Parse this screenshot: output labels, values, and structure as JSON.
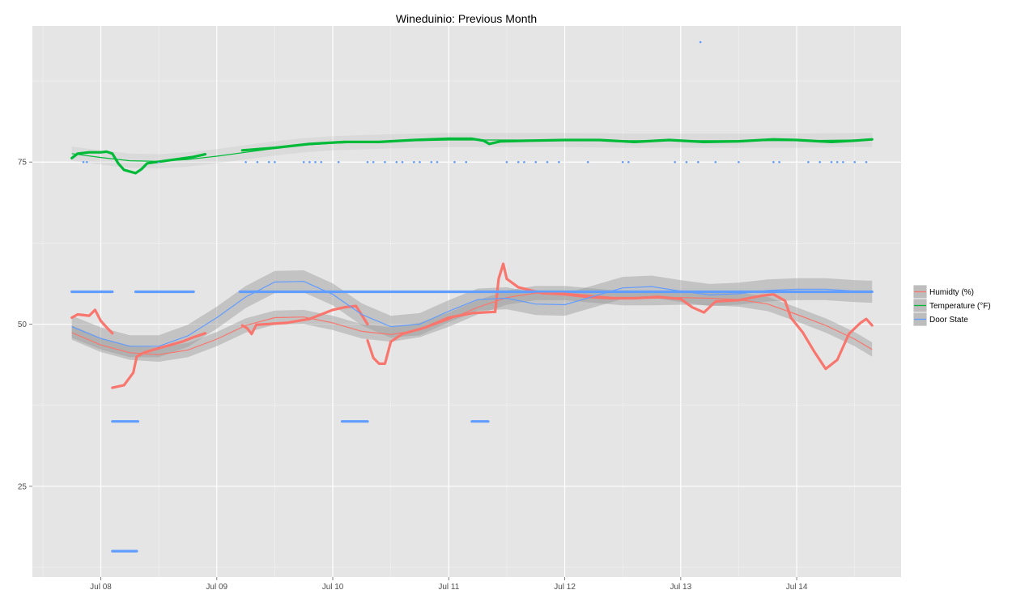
{
  "chart_data": {
    "type": "line",
    "title": "Wineduinio: Previous Month",
    "xlabel": "",
    "ylabel": "",
    "x_ticks": [
      "Jul 08",
      "Jul 09",
      "Jul 10",
      "Jul 11",
      "Jul 12",
      "Jul 13",
      "Jul 14"
    ],
    "x_range": [
      -0.59,
      6.9
    ],
    "y_ticks": [
      25,
      50,
      75
    ],
    "y_range": [
      11,
      96
    ],
    "grid": true,
    "legend_position": "right",
    "series": [
      {
        "name": "Humidty (%)",
        "color": "#f8766d",
        "kind": "points",
        "segments": [
          [
            [
              -0.25,
              51
            ],
            [
              -0.2,
              51.5
            ],
            [
              -0.1,
              51.3
            ],
            [
              -0.05,
              52.2
            ],
            [
              0.0,
              50.5
            ],
            [
              0.05,
              49.5
            ],
            [
              0.1,
              48.6
            ]
          ],
          [
            [
              0.1,
              40.2
            ],
            [
              0.2,
              40.6
            ],
            [
              0.28,
              42.5
            ],
            [
              0.31,
              45
            ],
            [
              0.37,
              45.6
            ],
            [
              0.5,
              46.3
            ],
            [
              0.7,
              47.3
            ],
            [
              0.8,
              48
            ],
            [
              0.9,
              48.6
            ]
          ],
          [
            [
              1.22,
              49.8
            ],
            [
              1.26,
              49.4
            ],
            [
              1.3,
              48.5
            ],
            [
              1.34,
              49.9
            ],
            [
              1.6,
              50.2
            ],
            [
              1.8,
              50.8
            ],
            [
              2.0,
              52.2
            ],
            [
              2.1,
              52.6
            ],
            [
              2.2,
              52.8
            ],
            [
              2.3,
              50
            ]
          ],
          [
            [
              2.3,
              47.5
            ],
            [
              2.35,
              44.8
            ],
            [
              2.4,
              43.9
            ],
            [
              2.45,
              43.9
            ],
            [
              2.5,
              47.3
            ],
            [
              2.6,
              48.5
            ],
            [
              2.8,
              49.5
            ],
            [
              3.0,
              51
            ],
            [
              3.2,
              51.7
            ],
            [
              3.4,
              51.9
            ]
          ],
          [
            [
              3.4,
              51.9
            ],
            [
              3.43,
              57
            ],
            [
              3.47,
              59.3
            ],
            [
              3.5,
              57
            ],
            [
              3.6,
              55.7
            ],
            [
              3.8,
              54.8
            ],
            [
              4.0,
              54.6
            ],
            [
              4.2,
              54.2
            ],
            [
              4.4,
              54
            ],
            [
              4.6,
              54
            ],
            [
              4.8,
              54.2
            ]
          ],
          [
            [
              4.8,
              54.2
            ],
            [
              5.0,
              53.9
            ],
            [
              5.1,
              52.6
            ],
            [
              5.2,
              51.8
            ],
            [
              5.3,
              53.5
            ],
            [
              5.5,
              53.7
            ],
            [
              5.7,
              54.4
            ],
            [
              5.8,
              54.6
            ],
            [
              5.9,
              53.6
            ],
            [
              5.95,
              51
            ],
            [
              6.05,
              48.8
            ],
            [
              6.15,
              45.8
            ],
            [
              6.25,
              43.1
            ],
            [
              6.35,
              44.5
            ],
            [
              6.45,
              48.5
            ],
            [
              6.55,
              50.2
            ],
            [
              6.6,
              50.8
            ],
            [
              6.65,
              49.8
            ]
          ]
        ],
        "smooth": [
          [
            -0.25,
            48.7
          ],
          [
            0.0,
            46.8
          ],
          [
            0.25,
            45.6
          ],
          [
            0.5,
            45.3
          ],
          [
            0.75,
            46
          ],
          [
            1.0,
            47.7
          ],
          [
            1.25,
            49.8
          ],
          [
            1.5,
            51
          ],
          [
            1.75,
            51.1
          ],
          [
            2.0,
            50.2
          ],
          [
            2.25,
            48.9
          ],
          [
            2.5,
            48.4
          ],
          [
            2.75,
            49.1
          ],
          [
            3.0,
            50.7
          ],
          [
            3.25,
            52.6
          ],
          [
            3.5,
            54.1
          ],
          [
            3.75,
            54.8
          ],
          [
            4.0,
            54.8
          ],
          [
            4.25,
            54.4
          ],
          [
            4.5,
            54
          ],
          [
            4.75,
            54
          ],
          [
            5.0,
            54.1
          ],
          [
            5.25,
            54
          ],
          [
            5.5,
            53.8
          ],
          [
            5.75,
            53.1
          ],
          [
            6.0,
            51.5
          ],
          [
            6.25,
            49.8
          ],
          [
            6.5,
            47.7
          ],
          [
            6.65,
            46.1
          ]
        ]
      },
      {
        "name": "Temperature (°F)",
        "color": "#00ba38",
        "kind": "points",
        "segments": [
          [
            [
              -0.25,
              75.6
            ],
            [
              -0.2,
              76.3
            ],
            [
              -0.1,
              76.5
            ],
            [
              0.0,
              76.5
            ],
            [
              0.05,
              76.6
            ],
            [
              0.1,
              76.3
            ],
            [
              0.15,
              74.8
            ],
            [
              0.2,
              73.8
            ],
            [
              0.3,
              73.3
            ],
            [
              0.35,
              73.9
            ],
            [
              0.4,
              74.8
            ],
            [
              0.6,
              75.3
            ],
            [
              0.8,
              75.8
            ],
            [
              0.9,
              76.2
            ]
          ],
          [
            [
              1.22,
              76.8
            ],
            [
              1.5,
              77.2
            ],
            [
              1.8,
              77.8
            ],
            [
              2.1,
              78.1
            ],
            [
              2.4,
              78.1
            ],
            [
              2.7,
              78.4
            ],
            [
              3.0,
              78.6
            ],
            [
              3.2,
              78.6
            ],
            [
              3.3,
              78.3
            ],
            [
              3.35,
              77.8
            ],
            [
              3.45,
              78.2
            ],
            [
              3.7,
              78.3
            ],
            [
              4.0,
              78.4
            ],
            [
              4.3,
              78.4
            ],
            [
              4.6,
              78.1
            ],
            [
              4.9,
              78.4
            ],
            [
              5.2,
              78.1
            ],
            [
              5.5,
              78.2
            ],
            [
              5.8,
              78.5
            ],
            [
              6.0,
              78.4
            ],
            [
              6.3,
              78.1
            ],
            [
              6.5,
              78.3
            ],
            [
              6.65,
              78.5
            ]
          ]
        ],
        "smooth": [
          [
            -0.25,
            76.3
          ],
          [
            0.0,
            75.7
          ],
          [
            0.25,
            75.2
          ],
          [
            0.5,
            75.1
          ],
          [
            0.75,
            75.4
          ],
          [
            1.0,
            75.9
          ],
          [
            1.25,
            76.5
          ],
          [
            1.5,
            77.1
          ],
          [
            1.75,
            77.6
          ],
          [
            2.0,
            77.9
          ],
          [
            2.5,
            78.2
          ],
          [
            3.0,
            78.4
          ],
          [
            3.5,
            78.4
          ],
          [
            4.0,
            78.4
          ],
          [
            4.5,
            78.3
          ],
          [
            5.0,
            78.3
          ],
          [
            5.5,
            78.3
          ],
          [
            6.0,
            78.3
          ],
          [
            6.5,
            78.4
          ],
          [
            6.65,
            78.4
          ]
        ]
      },
      {
        "name": "Door State",
        "color": "#619cff",
        "kind": "points",
        "segments": [
          [
            [
              -0.25,
              55
            ],
            [
              0.1,
              55
            ]
          ],
          [
            [
              0.3,
              55
            ],
            [
              0.8,
              55
            ]
          ],
          [
            [
              1.2,
              55
            ],
            [
              6.65,
              55
            ]
          ],
          [
            [
              0.1,
              35
            ],
            [
              0.32,
              35
            ]
          ],
          [
            [
              2.08,
              35
            ],
            [
              2.3,
              35
            ]
          ],
          [
            [
              3.2,
              35
            ],
            [
              3.34,
              35
            ]
          ],
          [
            [
              0.1,
              15
            ],
            [
              0.31,
              15
            ]
          ]
        ],
        "points": [
          [
            -0.15,
            75
          ],
          [
            -0.12,
            75
          ],
          [
            0.5,
            75
          ],
          [
            1.25,
            75
          ],
          [
            1.35,
            75
          ],
          [
            1.45,
            75
          ],
          [
            1.5,
            75
          ],
          [
            1.75,
            75
          ],
          [
            1.8,
            75
          ],
          [
            1.85,
            75
          ],
          [
            1.9,
            75
          ],
          [
            2.05,
            75
          ],
          [
            2.3,
            75
          ],
          [
            2.35,
            75
          ],
          [
            2.45,
            75
          ],
          [
            2.55,
            75
          ],
          [
            2.6,
            75
          ],
          [
            2.7,
            75
          ],
          [
            2.75,
            75
          ],
          [
            2.85,
            75
          ],
          [
            2.9,
            75
          ],
          [
            3.05,
            75
          ],
          [
            3.15,
            75
          ],
          [
            3.5,
            75
          ],
          [
            3.6,
            75
          ],
          [
            3.65,
            75
          ],
          [
            3.75,
            75
          ],
          [
            3.85,
            75
          ],
          [
            3.95,
            75
          ],
          [
            4.2,
            75
          ],
          [
            4.5,
            75
          ],
          [
            4.55,
            75
          ],
          [
            4.95,
            75
          ],
          [
            5.05,
            75
          ],
          [
            5.15,
            75
          ],
          [
            5.3,
            75
          ],
          [
            5.5,
            75
          ],
          [
            5.8,
            75
          ],
          [
            5.85,
            75
          ],
          [
            6.1,
            75
          ],
          [
            6.2,
            75
          ],
          [
            6.3,
            75
          ],
          [
            6.35,
            75
          ],
          [
            6.4,
            75
          ],
          [
            6.5,
            75
          ],
          [
            6.6,
            75
          ],
          [
            5.17,
            93.5
          ]
        ],
        "smooth": [
          [
            -0.25,
            49.6
          ],
          [
            0.0,
            47.8
          ],
          [
            0.25,
            46.6
          ],
          [
            0.5,
            46.6
          ],
          [
            0.75,
            48.2
          ],
          [
            1.0,
            51
          ],
          [
            1.25,
            54.2
          ],
          [
            1.5,
            56.5
          ],
          [
            1.75,
            56.6
          ],
          [
            2.0,
            54.6
          ],
          [
            2.25,
            51.5
          ],
          [
            2.5,
            49.6
          ],
          [
            2.75,
            50
          ],
          [
            3.0,
            52
          ],
          [
            3.25,
            53.8
          ],
          [
            3.5,
            54
          ],
          [
            3.75,
            53.1
          ],
          [
            4.0,
            53
          ],
          [
            4.25,
            54.3
          ],
          [
            4.5,
            55.6
          ],
          [
            4.75,
            55.8
          ],
          [
            5.0,
            55.1
          ],
          [
            5.25,
            54.5
          ],
          [
            5.5,
            54.7
          ],
          [
            5.75,
            55.2
          ],
          [
            6.0,
            55.4
          ],
          [
            6.25,
            55.4
          ],
          [
            6.5,
            55.1
          ],
          [
            6.65,
            55
          ]
        ]
      }
    ]
  }
}
